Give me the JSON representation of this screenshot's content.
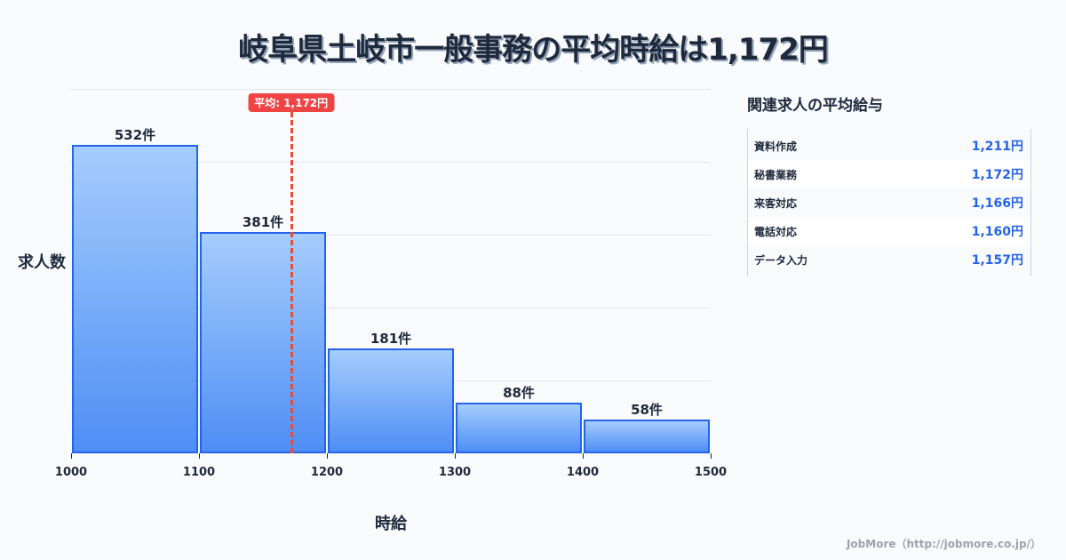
{
  "title": "岐阜県土岐市一般事務の平均時給は1,172円",
  "chart_data": {
    "type": "bar",
    "title": "岐阜県土岐市一般事務の平均時給は1,172円",
    "xlabel": "時給",
    "ylabel": "求人数",
    "bins": [
      [
        1000,
        1100
      ],
      [
        1100,
        1200
      ],
      [
        1200,
        1300
      ],
      [
        1300,
        1400
      ],
      [
        1400,
        1500
      ]
    ],
    "categories": [
      "1000-1100",
      "1100-1200",
      "1200-1300",
      "1300-1400",
      "1400-1500"
    ],
    "values": [
      532,
      381,
      181,
      88,
      58
    ],
    "value_labels": [
      "532件",
      "381件",
      "181件",
      "88件",
      "58件"
    ],
    "x_ticks": [
      "1000",
      "1100",
      "1200",
      "1300",
      "1400",
      "1500"
    ],
    "xlim": [
      1000,
      1500
    ],
    "ylim": [
      0,
      628
    ],
    "grid": true,
    "average": {
      "value": 1172,
      "label": "平均: 1,172円"
    },
    "colors": {
      "bar_fill_top": "#a5cdfd",
      "bar_fill_bottom": "#4e8ef5",
      "bar_border": "#2563eb",
      "average_line": "#ef4444"
    }
  },
  "sidebar": {
    "title": "関連求人の平均給与",
    "items": [
      {
        "name": "資料作成",
        "value": "1,211円"
      },
      {
        "name": "秘書業務",
        "value": "1,172円"
      },
      {
        "name": "来客対応",
        "value": "1,166円"
      },
      {
        "name": "電話対応",
        "value": "1,160円"
      },
      {
        "name": "データ入力",
        "value": "1,157円"
      }
    ]
  },
  "footer": "JobMore（http://jobmore.co.jp/）"
}
